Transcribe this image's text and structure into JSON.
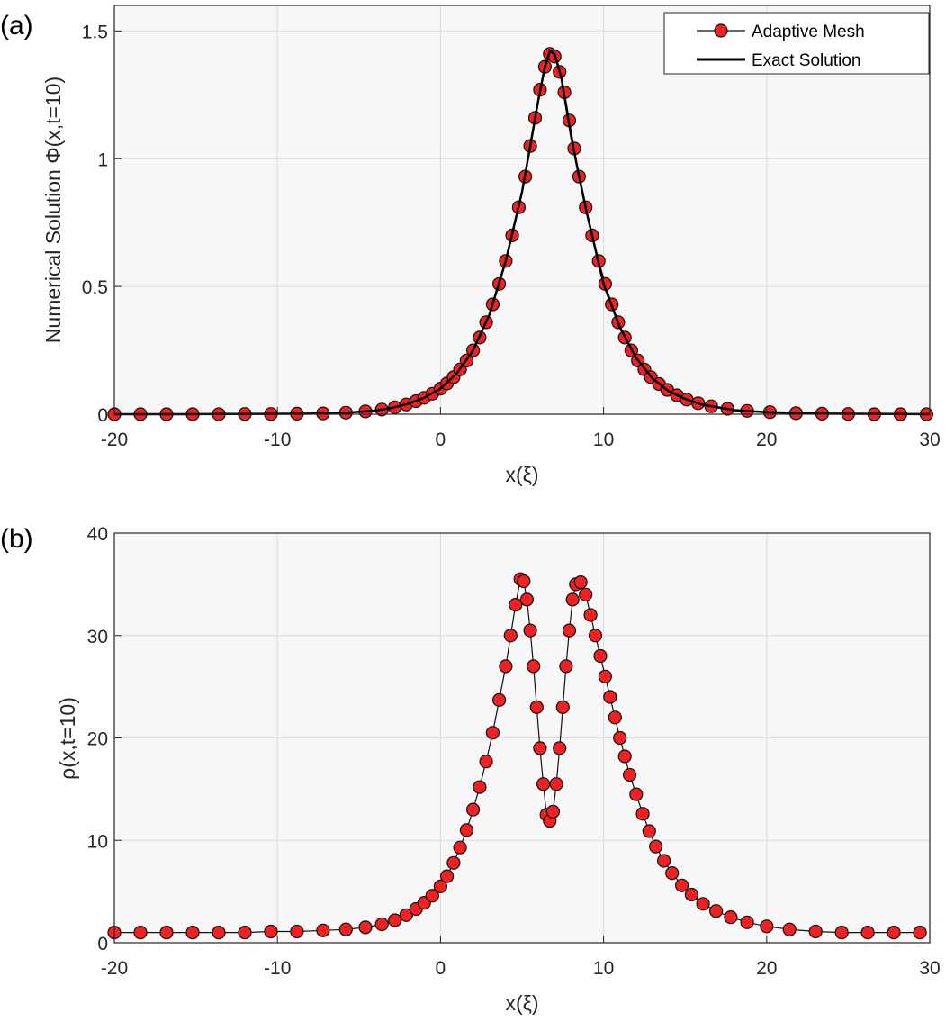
{
  "figure": {
    "colors": {
      "marker_fill": "#ee2222",
      "marker_edge": "#111111",
      "exact_line": "#000000",
      "axes_bg": "#f7f7f7",
      "grid": "#dcdcdc",
      "axis": "#262626"
    }
  },
  "chart_data": [
    {
      "type": "line",
      "panel_label": "(a)",
      "xlabel": "x(ξ)",
      "ylabel": "Numerical Solution Φ(x,t=10)",
      "xlim": [
        -20,
        30
      ],
      "ylim": [
        0,
        1.6
      ],
      "xticks": [
        "-20",
        "-10",
        "0",
        "10",
        "20",
        "30"
      ],
      "yticks": [
        "0",
        "0.5",
        "1",
        "1.5"
      ],
      "grid": true,
      "legend": {
        "location": "top-right"
      },
      "series": [
        {
          "name": "Adaptive Mesh",
          "style": "line-with-markers",
          "points": [
            [
              -20,
              0
            ],
            [
              -18.4,
              0
            ],
            [
              -16.8,
              0
            ],
            [
              -15.2,
              0
            ],
            [
              -13.6,
              0
            ],
            [
              -12,
              0.001
            ],
            [
              -10.4,
              0.001
            ],
            [
              -8.8,
              0.002
            ],
            [
              -7.2,
              0.003
            ],
            [
              -5.8,
              0.006
            ],
            [
              -4.6,
              0.011
            ],
            [
              -3.6,
              0.018
            ],
            [
              -2.8,
              0.027
            ],
            [
              -2.1,
              0.038
            ],
            [
              -1.5,
              0.051
            ],
            [
              -1.0,
              0.064
            ],
            [
              -0.5,
              0.08
            ],
            [
              0,
              0.1
            ],
            [
              0.4,
              0.12
            ],
            [
              0.8,
              0.145
            ],
            [
              1.2,
              0.175
            ],
            [
              1.6,
              0.21
            ],
            [
              2.0,
              0.25
            ],
            [
              2.4,
              0.3
            ],
            [
              2.8,
              0.36
            ],
            [
              3.2,
              0.43
            ],
            [
              3.6,
              0.51
            ],
            [
              4.0,
              0.6
            ],
            [
              4.4,
              0.7
            ],
            [
              4.8,
              0.81
            ],
            [
              5.2,
              0.93
            ],
            [
              5.5,
              1.05
            ],
            [
              5.8,
              1.16
            ],
            [
              6.1,
              1.27
            ],
            [
              6.4,
              1.36
            ],
            [
              6.7,
              1.41
            ],
            [
              7.0,
              1.4
            ],
            [
              7.3,
              1.34
            ],
            [
              7.6,
              1.26
            ],
            [
              7.9,
              1.15
            ],
            [
              8.2,
              1.04
            ],
            [
              8.5,
              0.93
            ],
            [
              8.9,
              0.81
            ],
            [
              9.3,
              0.7
            ],
            [
              9.7,
              0.6
            ],
            [
              10.1,
              0.51
            ],
            [
              10.5,
              0.43
            ],
            [
              10.9,
              0.36
            ],
            [
              11.3,
              0.3
            ],
            [
              11.7,
              0.25
            ],
            [
              12.1,
              0.21
            ],
            [
              12.5,
              0.175
            ],
            [
              12.9,
              0.145
            ],
            [
              13.4,
              0.118
            ],
            [
              13.9,
              0.095
            ],
            [
              14.5,
              0.074
            ],
            [
              15.1,
              0.057
            ],
            [
              15.8,
              0.043
            ],
            [
              16.6,
              0.031
            ],
            [
              17.6,
              0.021
            ],
            [
              18.8,
              0.013
            ],
            [
              20.2,
              0.008
            ],
            [
              21.8,
              0.004
            ],
            [
              23.4,
              0.002
            ],
            [
              25,
              0.001
            ],
            [
              26.6,
              0
            ],
            [
              28.2,
              0
            ],
            [
              29.8,
              0
            ]
          ]
        },
        {
          "name": "Exact Solution",
          "style": "solid-line",
          "points": [
            [
              -20,
              0
            ],
            [
              -16,
              0
            ],
            [
              -12,
              0.001
            ],
            [
              -8,
              0.002
            ],
            [
              -6,
              0.005
            ],
            [
              -4,
              0.014
            ],
            [
              -3,
              0.024
            ],
            [
              -2,
              0.04
            ],
            [
              -1,
              0.064
            ],
            [
              0,
              0.1
            ],
            [
              1,
              0.16
            ],
            [
              2,
              0.25
            ],
            [
              3,
              0.39
            ],
            [
              4,
              0.6
            ],
            [
              5,
              0.87
            ],
            [
              5.5,
              1.05
            ],
            [
              6,
              1.23
            ],
            [
              6.4,
              1.36
            ],
            [
              6.7,
              1.42
            ],
            [
              7.0,
              1.41
            ],
            [
              7.4,
              1.32
            ],
            [
              8,
              1.09
            ],
            [
              8.5,
              0.93
            ],
            [
              9,
              0.78
            ],
            [
              10,
              0.51
            ],
            [
              11,
              0.34
            ],
            [
              12,
              0.22
            ],
            [
              13,
              0.14
            ],
            [
              14,
              0.09
            ],
            [
              15,
              0.06
            ],
            [
              16,
              0.038
            ],
            [
              18,
              0.016
            ],
            [
              20,
              0.008
            ],
            [
              24,
              0.002
            ],
            [
              30,
              0
            ]
          ]
        }
      ]
    },
    {
      "type": "line",
      "panel_label": "(b)",
      "xlabel": "x(ξ)",
      "ylabel": "ρ(x,t=10)",
      "xlim": [
        -20,
        30
      ],
      "ylim": [
        0,
        40
      ],
      "xticks": [
        "-20",
        "-10",
        "0",
        "10",
        "20",
        "30"
      ],
      "yticks": [
        "0",
        "10",
        "20",
        "30",
        "40"
      ],
      "grid": true,
      "series": [
        {
          "name": "",
          "style": "line-with-markers",
          "points": [
            [
              -20,
              1
            ],
            [
              -18.4,
              1
            ],
            [
              -16.8,
              1
            ],
            [
              -15.2,
              1
            ],
            [
              -13.6,
              1
            ],
            [
              -12,
              1
            ],
            [
              -10.4,
              1.1
            ],
            [
              -8.8,
              1.1
            ],
            [
              -7.2,
              1.2
            ],
            [
              -5.8,
              1.3
            ],
            [
              -4.6,
              1.5
            ],
            [
              -3.6,
              1.8
            ],
            [
              -2.8,
              2.2
            ],
            [
              -2.1,
              2.7
            ],
            [
              -1.5,
              3.3
            ],
            [
              -1.0,
              3.9
            ],
            [
              -0.5,
              4.6
            ],
            [
              0,
              5.5
            ],
            [
              0.4,
              6.5
            ],
            [
              0.8,
              7.8
            ],
            [
              1.2,
              9.3
            ],
            [
              1.6,
              11
            ],
            [
              2.0,
              13
            ],
            [
              2.4,
              15.2
            ],
            [
              2.8,
              17.7
            ],
            [
              3.2,
              20.5
            ],
            [
              3.6,
              23.7
            ],
            [
              4.0,
              27
            ],
            [
              4.3,
              30
            ],
            [
              4.6,
              33
            ],
            [
              4.9,
              35.5
            ],
            [
              5.1,
              35.3
            ],
            [
              5.3,
              33.5
            ],
            [
              5.5,
              30.5
            ],
            [
              5.7,
              27
            ],
            [
              5.9,
              23
            ],
            [
              6.1,
              19
            ],
            [
              6.3,
              15.5
            ],
            [
              6.5,
              12.5
            ],
            [
              6.7,
              11.9
            ],
            [
              6.9,
              12.8
            ],
            [
              7.1,
              15.5
            ],
            [
              7.3,
              19
            ],
            [
              7.5,
              23
            ],
            [
              7.7,
              27
            ],
            [
              7.9,
              30.5
            ],
            [
              8.1,
              33.5
            ],
            [
              8.3,
              35
            ],
            [
              8.6,
              35.2
            ],
            [
              8.9,
              34
            ],
            [
              9.2,
              32
            ],
            [
              9.5,
              30
            ],
            [
              9.8,
              28
            ],
            [
              10.1,
              26
            ],
            [
              10.4,
              24
            ],
            [
              10.7,
              22
            ],
            [
              11.0,
              20
            ],
            [
              11.3,
              18.2
            ],
            [
              11.6,
              16.4
            ],
            [
              12.0,
              14.5
            ],
            [
              12.4,
              12.6
            ],
            [
              12.8,
              10.9
            ],
            [
              13.2,
              9.4
            ],
            [
              13.7,
              8
            ],
            [
              14.2,
              6.8
            ],
            [
              14.8,
              5.6
            ],
            [
              15.4,
              4.7
            ],
            [
              16.1,
              3.8
            ],
            [
              16.9,
              3.1
            ],
            [
              17.8,
              2.5
            ],
            [
              18.8,
              2
            ],
            [
              20,
              1.6
            ],
            [
              21.4,
              1.3
            ],
            [
              23,
              1.1
            ],
            [
              24.6,
              1
            ],
            [
              26.2,
              1
            ],
            [
              27.8,
              1
            ],
            [
              29.4,
              1
            ]
          ]
        }
      ]
    }
  ]
}
